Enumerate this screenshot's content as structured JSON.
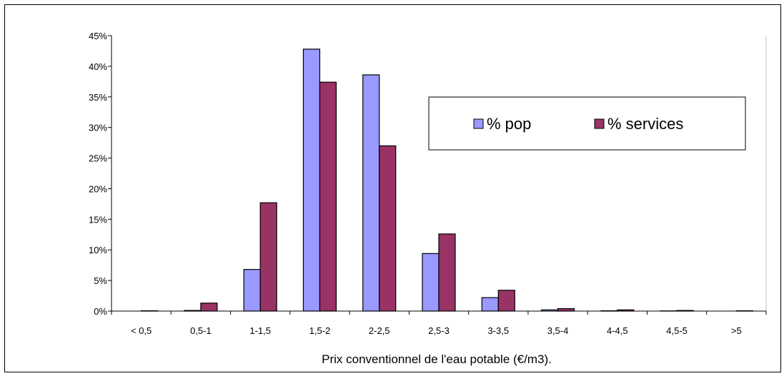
{
  "chart_data": {
    "type": "bar",
    "title": "",
    "xlabel": "Prix conventionnel  de l'eau potable (€/m3).",
    "ylabel": "",
    "ylim": [
      0,
      0.45
    ],
    "yticks": [
      "0%",
      "5%",
      "10%",
      "15%",
      "20%",
      "25%",
      "30%",
      "35%",
      "40%",
      "45%"
    ],
    "grid": false,
    "legend_position": "right",
    "categories": [
      "< 0,5",
      "0,5-1",
      "1-1,5",
      "1,5-2",
      "2-2,5",
      "2,5-3",
      "3-3,5",
      "3,5-4",
      "4-4,5",
      "4,5-5",
      ">5"
    ],
    "series": [
      {
        "name": "% pop",
        "color": "#9999ff",
        "values": [
          0.0,
          0.001,
          0.068,
          0.428,
          0.386,
          0.094,
          0.022,
          0.002,
          0.0005,
          0.0003,
          0.0
        ]
      },
      {
        "name": "% services",
        "color": "#993366",
        "values": [
          0.0005,
          0.013,
          0.177,
          0.374,
          0.27,
          0.126,
          0.034,
          0.004,
          0.002,
          0.001,
          0.0005
        ]
      }
    ]
  }
}
